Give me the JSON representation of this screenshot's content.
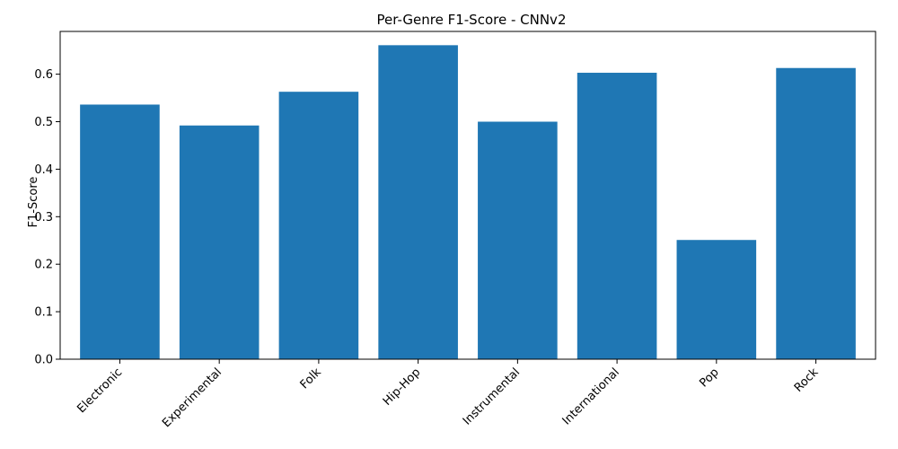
{
  "chart_data": {
    "type": "bar",
    "title": "Per-Genre F1-Score - CNNv2",
    "xlabel": "",
    "ylabel": "F1-Score",
    "categories": [
      "Electronic",
      "Experimental",
      "Folk",
      "Hip-Hop",
      "Instrumental",
      "International",
      "Pop",
      "Rock"
    ],
    "values": [
      0.536,
      0.492,
      0.563,
      0.661,
      0.5,
      0.603,
      0.251,
      0.613
    ],
    "ylim": [
      0,
      0.69
    ],
    "yticks": [
      0.0,
      0.1,
      0.2,
      0.3,
      0.4,
      0.5,
      0.6
    ],
    "ytick_labels": [
      "0.0",
      "0.1",
      "0.2",
      "0.3",
      "0.4",
      "0.5",
      "0.6"
    ],
    "bar_color": "#1f77b4",
    "grid": false,
    "legend": false
  }
}
